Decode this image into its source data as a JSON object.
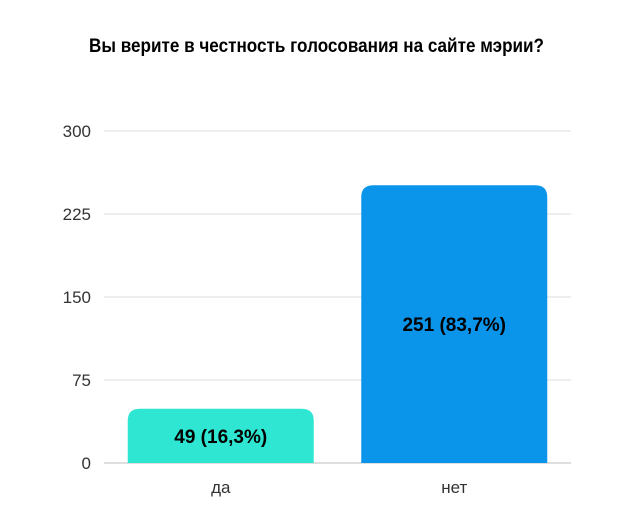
{
  "chart_data": {
    "type": "bar",
    "title": "Вы верите в честность голосования на сайте мэрии?",
    "categories": [
      "да",
      "нет"
    ],
    "values": [
      49,
      251
    ],
    "data_labels": [
      "49 (16,3%)",
      "251 (83,7%)"
    ],
    "bar_colors": [
      "#2ee6d2",
      "#0a94ea"
    ],
    "yticks": [
      "0",
      "75",
      "150",
      "225",
      "300"
    ],
    "ytick_values": [
      0,
      75,
      150,
      225,
      300
    ],
    "ylim": [
      0,
      300
    ],
    "xlabel": "",
    "ylabel": "",
    "grid": true,
    "legend": false
  }
}
